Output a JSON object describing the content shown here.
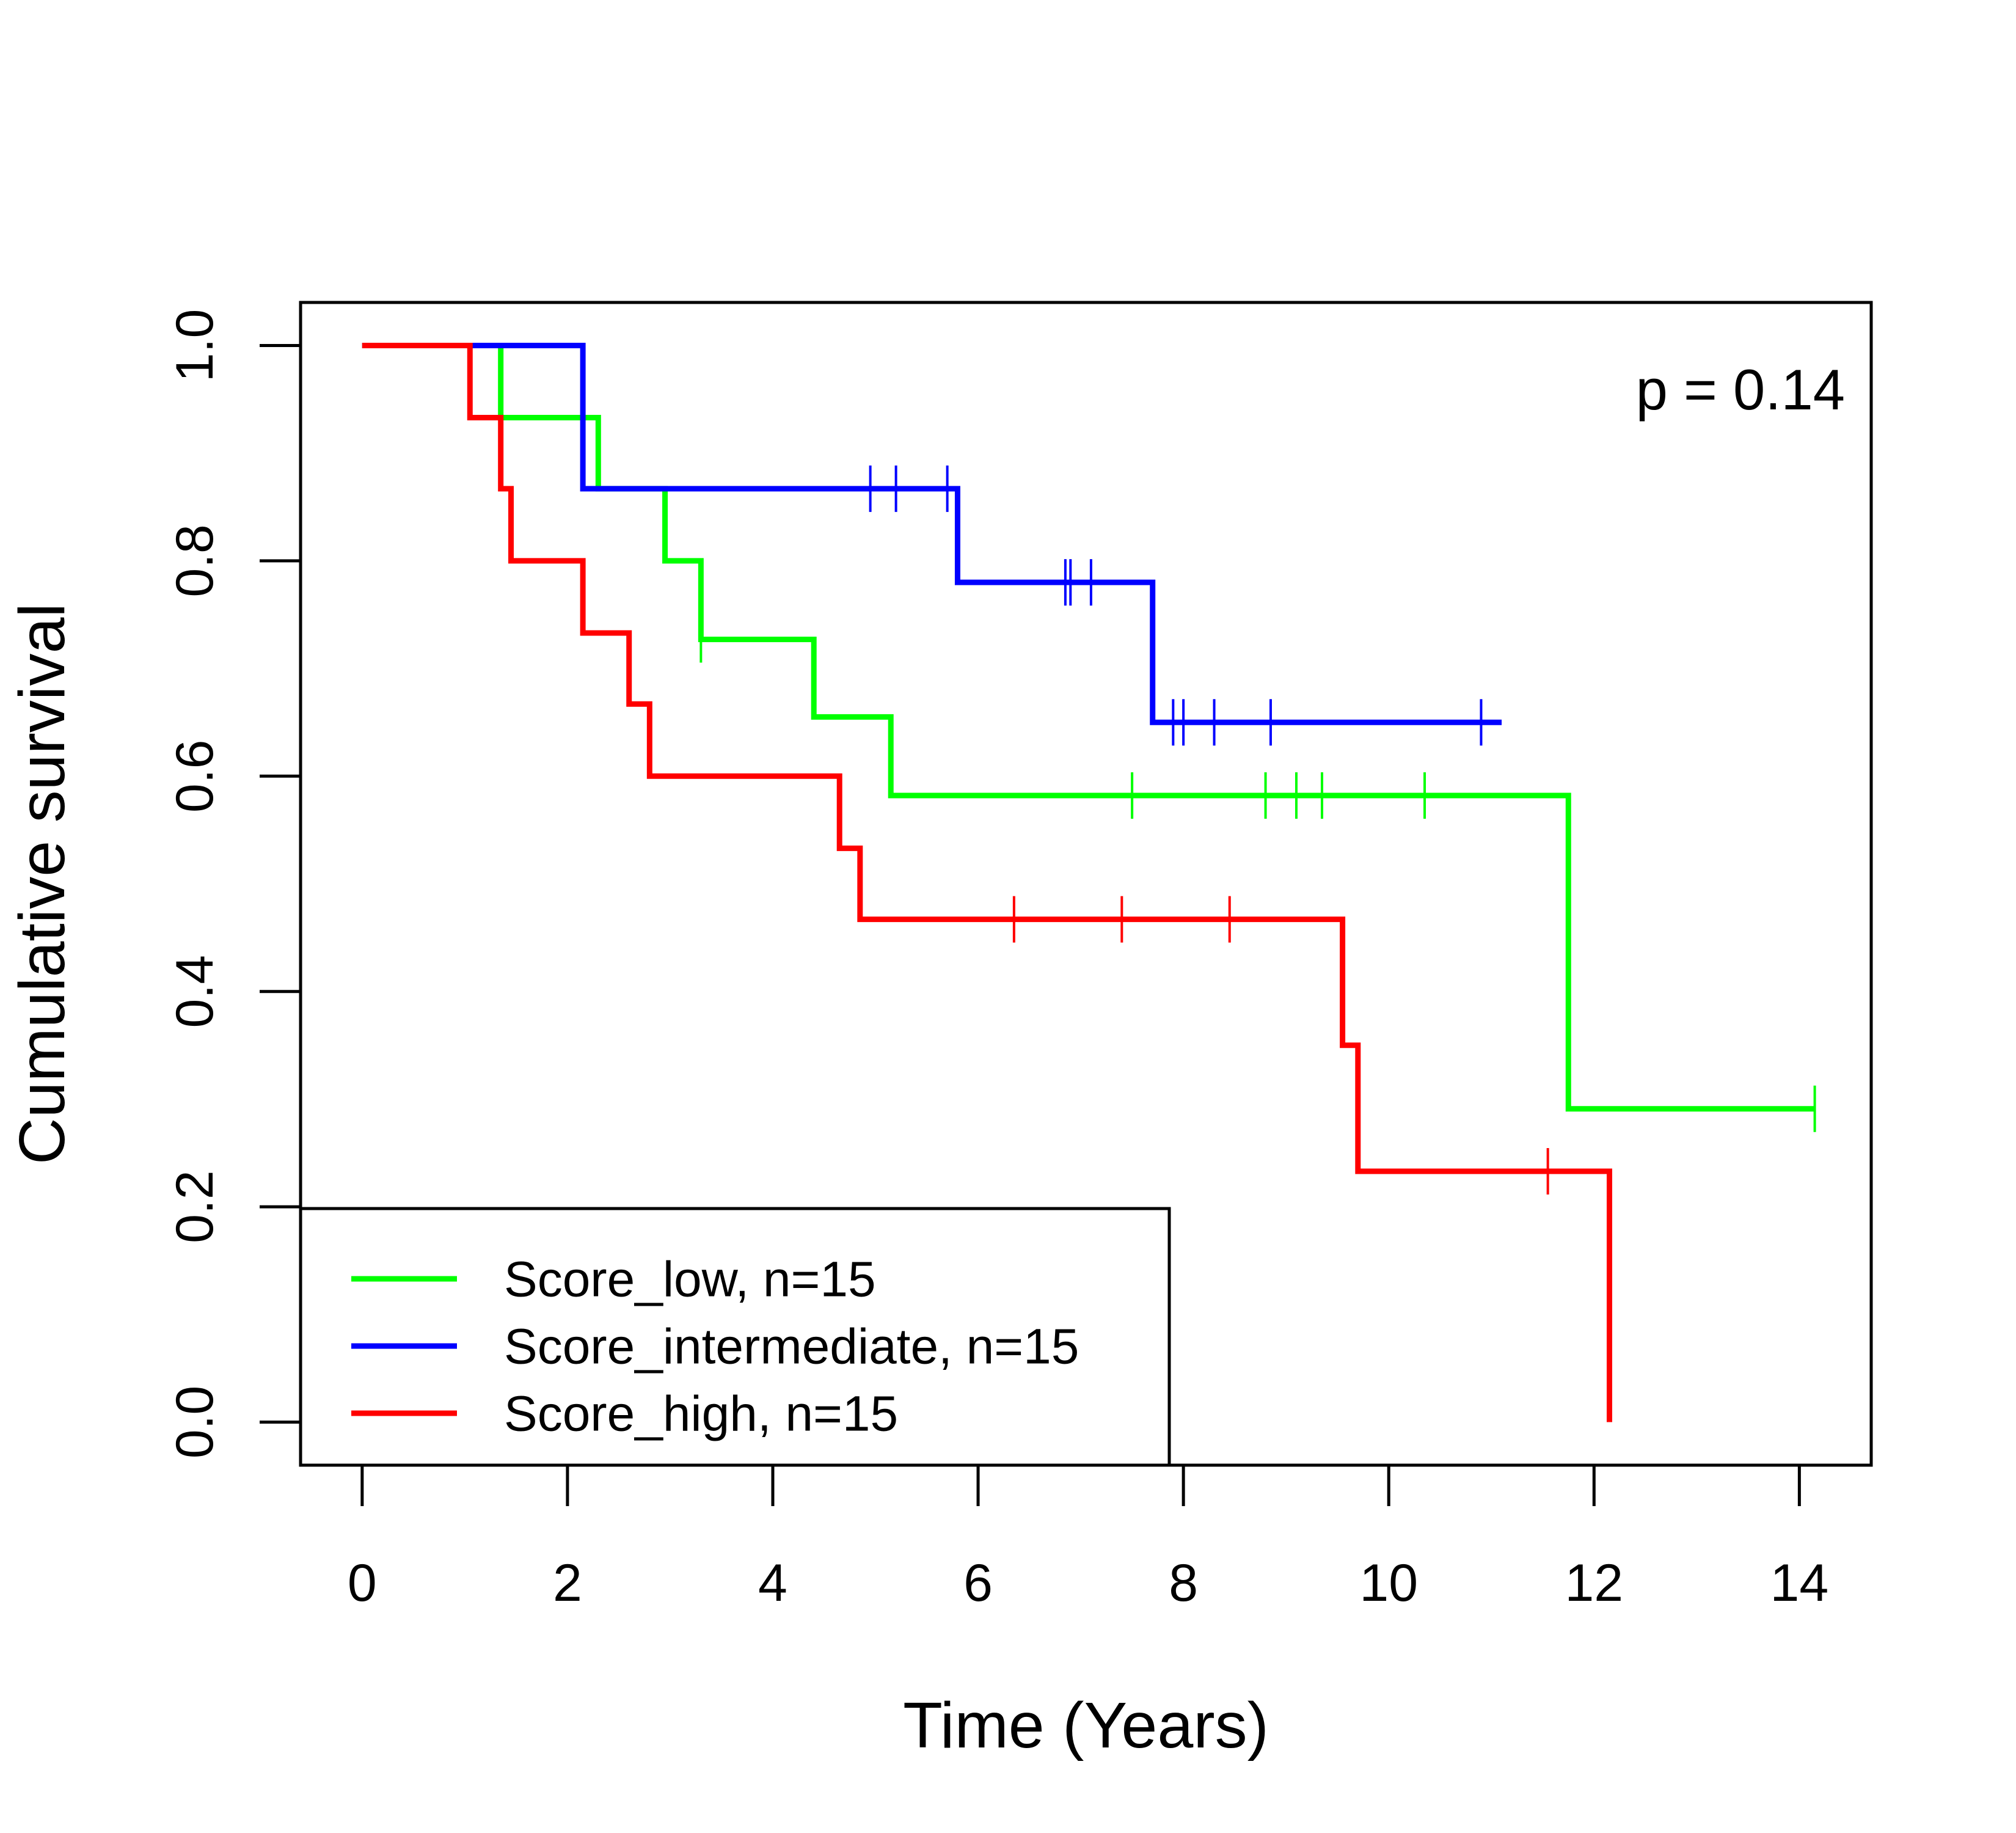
{
  "chart_data": {
    "type": "line",
    "title": "",
    "xlabel": "Time (Years)",
    "ylabel": "Cumulative survival",
    "xlim": [
      -0.6,
      14.7
    ],
    "ylim": [
      -0.04,
      1.04
    ],
    "xticks": [
      0,
      2,
      4,
      6,
      8,
      10,
      12,
      14
    ],
    "yticks": [
      0.0,
      0.2,
      0.4,
      0.6,
      0.8,
      1.0
    ],
    "xtick_labels": [
      "0",
      "2",
      "4",
      "6",
      "8",
      "10",
      "12",
      "14"
    ],
    "ytick_labels": [
      "0.0",
      "0.2",
      "0.4",
      "0.6",
      "0.8",
      "1.0"
    ],
    "grid": false,
    "legend_position": "bottom-left",
    "annotation": "p = 0.14",
    "series": [
      {
        "name": "Score_low, n=15",
        "color": "#00ff00",
        "steps": [
          [
            0,
            1.0
          ],
          [
            1.35,
            0.933
          ],
          [
            2.3,
            0.867
          ],
          [
            2.95,
            0.8
          ],
          [
            3.3,
            0.727
          ],
          [
            4.4,
            0.655
          ],
          [
            5.15,
            0.582
          ],
          [
            11.75,
            0.291
          ]
        ],
        "end": 14.15,
        "censor_times": [
          3.3,
          7.5,
          8.8,
          9.1,
          9.35,
          10.35,
          14.15
        ]
      },
      {
        "name": "Score_intermediate, n=15",
        "color": "#0000ff",
        "steps": [
          [
            0,
            1.0
          ],
          [
            2.15,
            0.867
          ],
          [
            5.8,
            0.78
          ],
          [
            7.7,
            0.65
          ]
        ],
        "end": 11.1,
        "censor_times": [
          4.95,
          5.2,
          5.7,
          6.85,
          6.9,
          7.1,
          7.9,
          8.0,
          8.3,
          8.85,
          10.9
        ]
      },
      {
        "name": "Score_high, n=15",
        "color": "#ff0000",
        "steps": [
          [
            0,
            1.0
          ],
          [
            1.05,
            0.933
          ],
          [
            1.35,
            0.867
          ],
          [
            1.45,
            0.8
          ],
          [
            2.15,
            0.733
          ],
          [
            2.6,
            0.667
          ],
          [
            2.8,
            0.6
          ],
          [
            4.65,
            0.533
          ],
          [
            4.85,
            0.467
          ],
          [
            9.55,
            0.35
          ],
          [
            9.7,
            0.233
          ],
          [
            12.15,
            0.0
          ]
        ],
        "end": 12.15,
        "censor_times": [
          6.35,
          7.4,
          8.45,
          11.55
        ]
      }
    ]
  }
}
